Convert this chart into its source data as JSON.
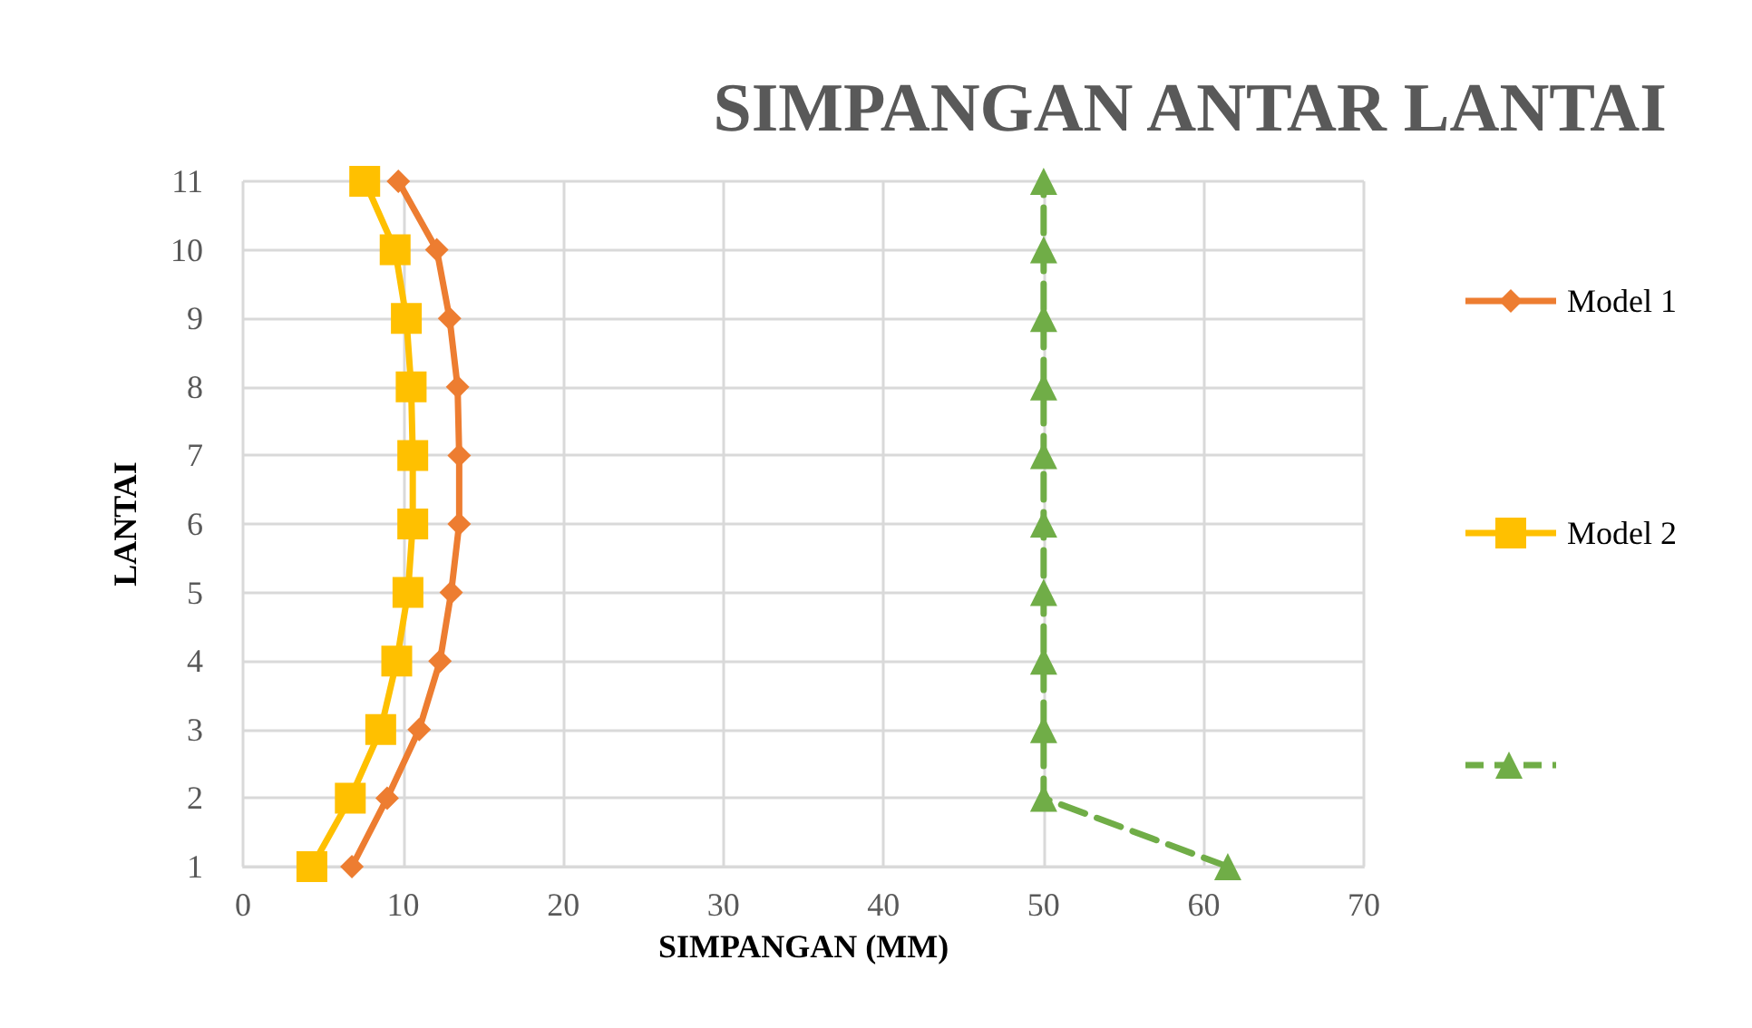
{
  "chart_data": {
    "type": "line",
    "title": "SIMPANGAN ANTAR LANTAI",
    "xlabel": "SIMPANGAN (MM)",
    "ylabel": "LANTAI",
    "xlim": [
      0,
      70
    ],
    "xticks": [
      0,
      10,
      20,
      30,
      40,
      50,
      60,
      70
    ],
    "ylim": [
      1,
      11
    ],
    "yticks": [
      1,
      2,
      3,
      4,
      5,
      6,
      7,
      8,
      9,
      10,
      11
    ],
    "grid": true,
    "legend": "right",
    "series": [
      {
        "name": "Model 1",
        "color": "#ed7d31",
        "marker": "diamond",
        "line_style": "solid",
        "x": [
          6.8,
          9.0,
          11.0,
          12.3,
          13.0,
          13.5,
          13.5,
          13.4,
          12.9,
          12.1,
          9.7
        ],
        "values": [
          1,
          2,
          3,
          4,
          5,
          6,
          7,
          8,
          9,
          10,
          11
        ]
      },
      {
        "name": "Model 2",
        "color": "#ffc000",
        "marker": "square",
        "line_style": "solid",
        "x": [
          4.3,
          6.7,
          8.6,
          9.6,
          10.3,
          10.6,
          10.6,
          10.5,
          10.2,
          9.5,
          7.6
        ],
        "values": [
          1,
          2,
          3,
          4,
          5,
          6,
          7,
          8,
          9,
          10,
          11
        ]
      },
      {
        "color": "#70ad47",
        "marker": "triangle",
        "line_style": "dashed",
        "x": [
          61.5,
          50,
          50,
          50,
          50,
          50,
          50,
          50,
          50,
          50,
          50
        ],
        "values": [
          1,
          2,
          3,
          4,
          5,
          6,
          7,
          8,
          9,
          10,
          11
        ]
      }
    ]
  }
}
